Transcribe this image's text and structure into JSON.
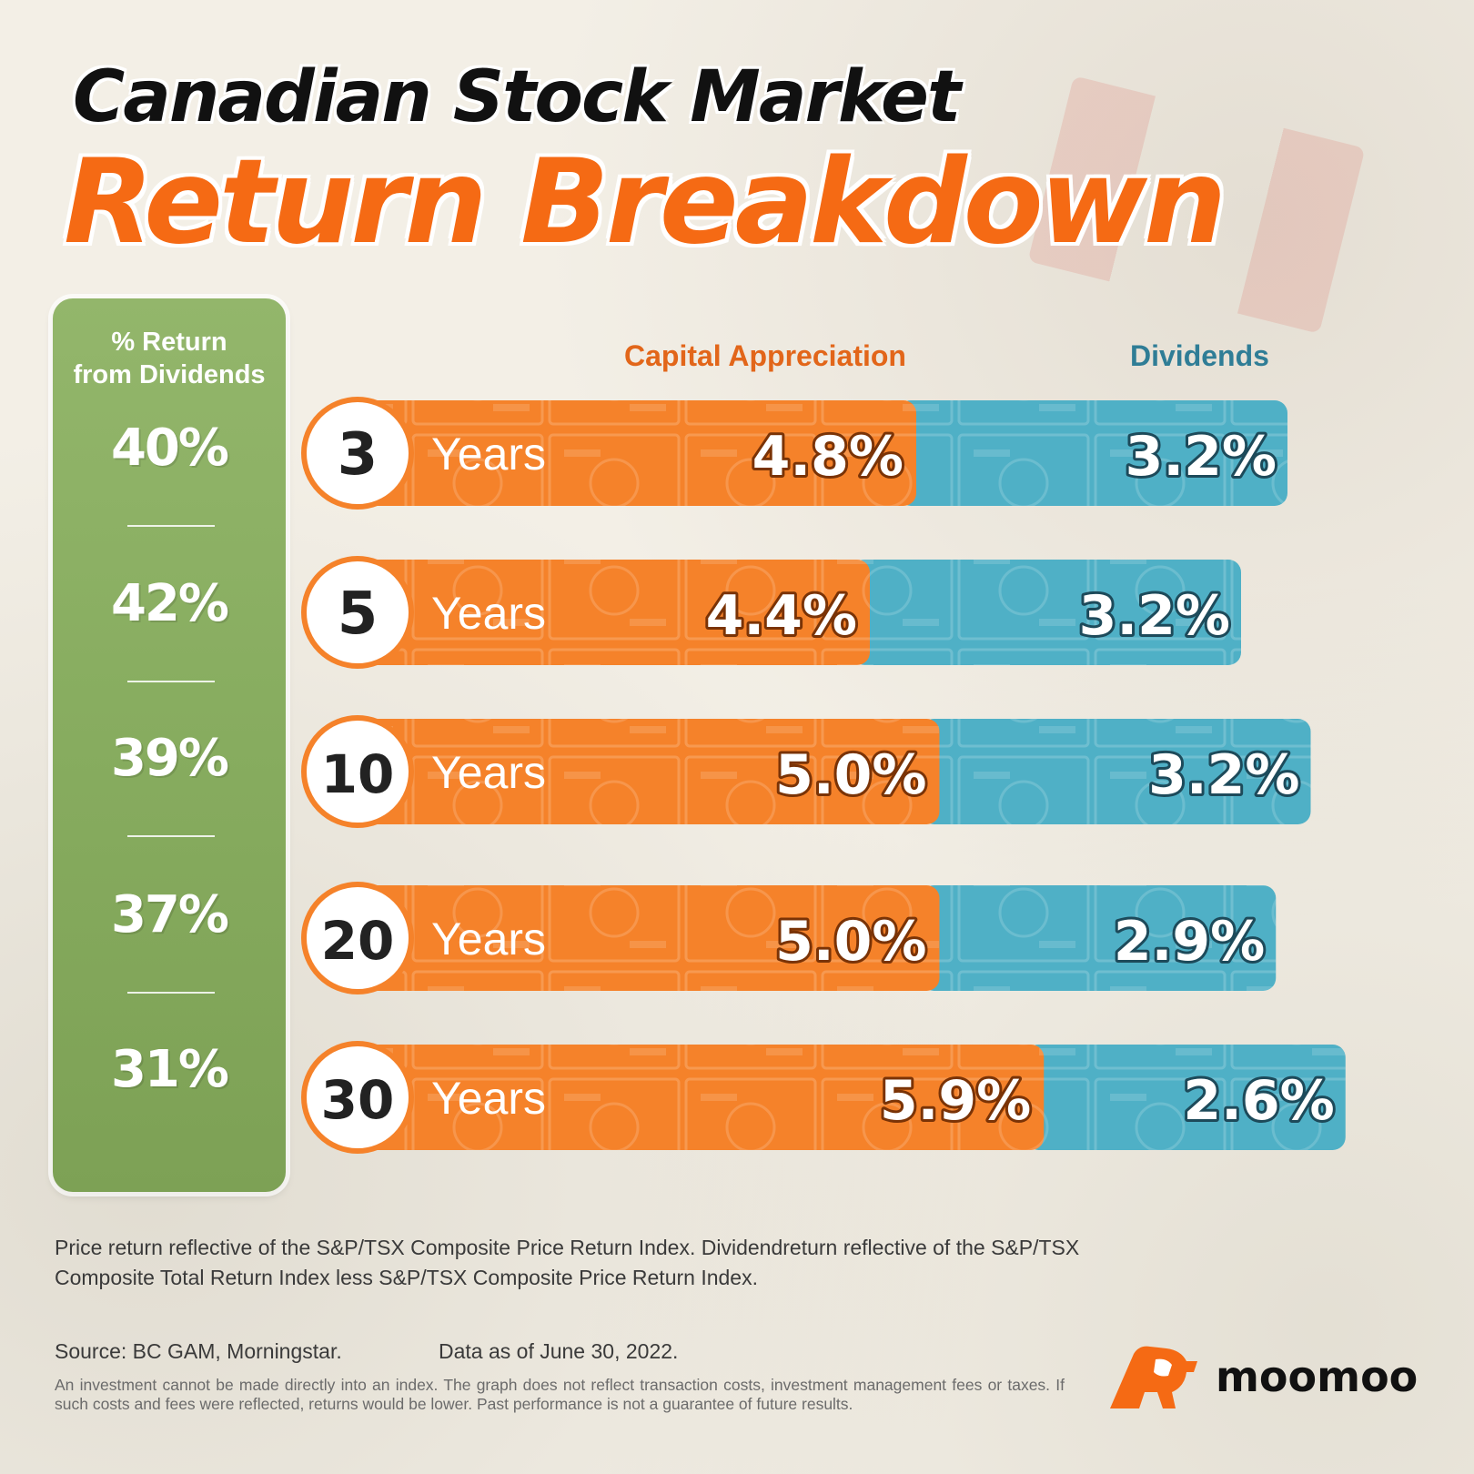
{
  "header": {
    "title_line1": "Canadian Stock Market",
    "title_line2": "Return Breakdown"
  },
  "colors": {
    "capital": "#f5822a",
    "dividends": "#4fb0c6",
    "panel": "#8db163",
    "title_accent": "#f56a14"
  },
  "sidebar": {
    "header_line1": "% Return",
    "header_line2": "from Dividends"
  },
  "chart_data": {
    "type": "bar",
    "stacked": true,
    "orientation": "horizontal",
    "categories": [
      "3",
      "5",
      "10",
      "20",
      "30"
    ],
    "category_suffix": "Years",
    "series": [
      {
        "name": "Capital Appreciation",
        "values": [
          4.8,
          4.4,
          5.0,
          5.0,
          5.9
        ],
        "labels": [
          "4.8%",
          "4.4%",
          "5.0%",
          "5.0%",
          "5.9%"
        ]
      },
      {
        "name": "Dividends",
        "values": [
          3.2,
          3.2,
          3.2,
          2.9,
          2.6
        ],
        "labels": [
          "3.2%",
          "3.2%",
          "3.2%",
          "2.9%",
          "2.6%"
        ]
      }
    ],
    "dividend_share": [
      "40%",
      "42%",
      "39%",
      "37%",
      "31%"
    ],
    "legend": "top",
    "xlabel": "",
    "ylabel": ""
  },
  "footer": {
    "line1": "Price return reflective of the S&P/TSX Composite Price Return Index. Dividendreturn reflective of the S&P/TSX Composite Total Return Index less S&P/TSX Composite Price Return Index.",
    "source": "Source: BC GAM, Morningstar.",
    "date": "Data as of June 30, 2022.",
    "disclaimer": "An investment cannot be made directly into an index. The graph does not reflect transaction costs, investment management fees or taxes. If such costs and fees were reflected, returns would be lower. Past performance is not a guarantee of future results."
  },
  "brand": {
    "name": "moomoo",
    "icon": "moomoo-bull-icon"
  }
}
